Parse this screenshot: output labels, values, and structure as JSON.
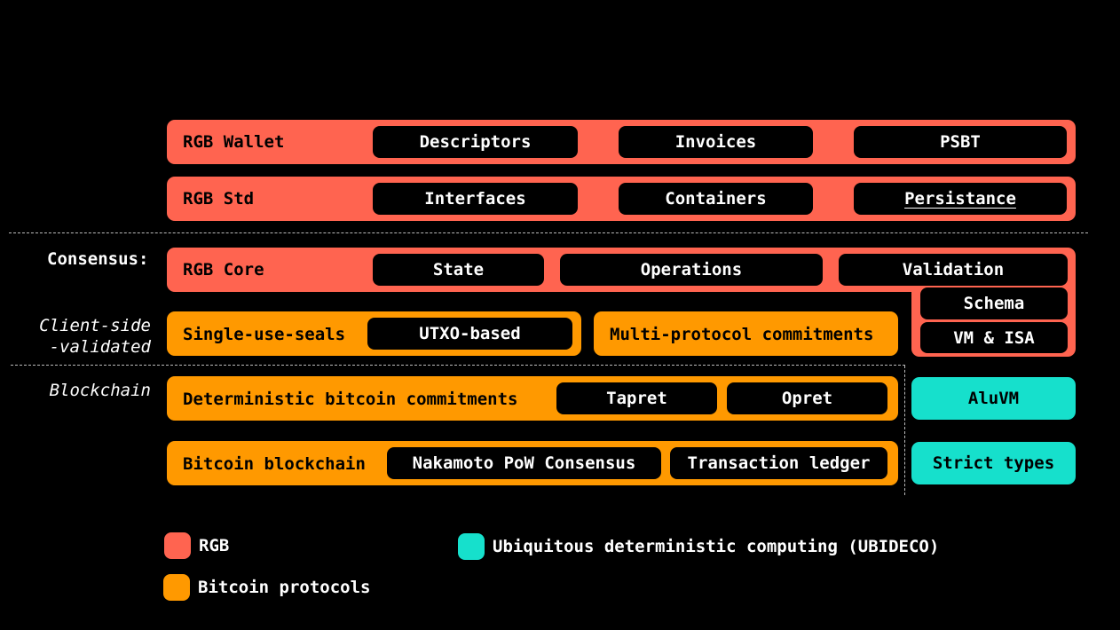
{
  "side_labels": {
    "consensus": "Consensus:",
    "client_side_1": "Client-side",
    "client_side_2": "-validated",
    "blockchain": "Blockchain"
  },
  "rows": {
    "wallet": {
      "label": "RGB Wallet",
      "items": [
        "Descriptors",
        "Invoices",
        "PSBT"
      ]
    },
    "std": {
      "label": "RGB Std",
      "items": [
        "Interfaces",
        "Containers",
        "Persistance"
      ]
    },
    "core": {
      "label": "RGB Core",
      "items": [
        "State",
        "Operations",
        "Validation",
        "Schema",
        "VM & ISA"
      ]
    },
    "seals": {
      "label": "Single-use-seals",
      "items": [
        "UTXO-based"
      ]
    },
    "mpc": {
      "label": "Multi-protocol commitments"
    },
    "dbc": {
      "label": "Deterministic bitcoin commitments",
      "items": [
        "Tapret",
        "Opret"
      ]
    },
    "btc": {
      "label": "Bitcoin blockchain",
      "items": [
        "Nakamoto PoW Consensus",
        "Transaction ledger"
      ]
    }
  },
  "ubideco": {
    "aluvm": "AluVM",
    "strict_types": "Strict types"
  },
  "legend": {
    "rgb": "RGB",
    "bitcoin": "Bitcoin protocols",
    "ubideco": "Ubiquitous deterministic computing (UBIDECO)"
  },
  "colors": {
    "rgb": "#ff6450",
    "bitcoin": "#ff9900",
    "ubideco": "#16e0cc",
    "background": "#000000"
  }
}
